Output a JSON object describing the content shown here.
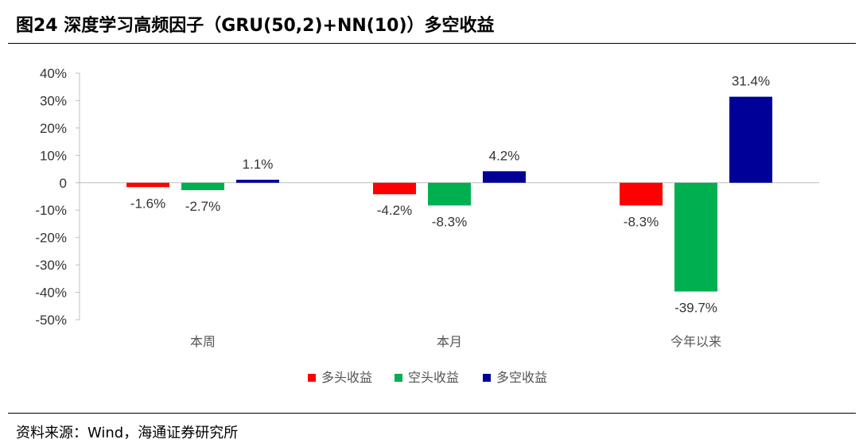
{
  "header": {
    "title": "图24 深度学习高频因子（GRU(50,2)+NN(10)）多空收益"
  },
  "footer": {
    "source": "资料来源：Wind，海通证券研究所"
  },
  "chart_data": {
    "type": "bar",
    "categories": [
      "本周",
      "本月",
      "今年以来"
    ],
    "series": [
      {
        "name": "多头收益",
        "color": "#ff0000",
        "values": [
          -1.6,
          -4.2,
          -8.3
        ],
        "labels": [
          "-1.6%",
          "-4.2%",
          "-8.3%"
        ]
      },
      {
        "name": "空头收益",
        "color": "#00b050",
        "values": [
          -2.7,
          -8.3,
          -39.7
        ],
        "labels": [
          "-2.7%",
          "-8.3%",
          "-39.7%"
        ]
      },
      {
        "name": "多空收益",
        "color": "#000099",
        "values": [
          1.1,
          4.2,
          31.4
        ],
        "labels": [
          "1.1%",
          "4.2%",
          "31.4%"
        ]
      }
    ],
    "ylim": [
      -50,
      40
    ],
    "yticks": [
      40,
      30,
      20,
      10,
      0,
      -10,
      -20,
      -30,
      -40,
      -50
    ],
    "ytick_labels": [
      "40%",
      "30%",
      "20%",
      "10%",
      "0",
      "-10%",
      "-20%",
      "-30%",
      "-40%",
      "-50%"
    ],
    "grid": false,
    "legend": "bottom-center"
  }
}
